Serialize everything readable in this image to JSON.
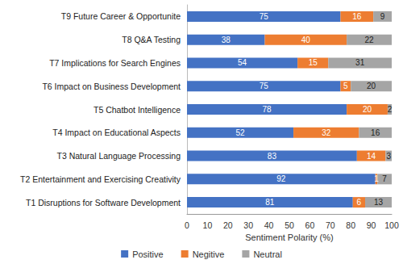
{
  "chart_data": {
    "type": "bar",
    "orientation": "horizontal",
    "stacked": true,
    "data_labels": true,
    "grid": false,
    "legend": "bottom",
    "xlabel": "Sentiment Polarity (%)",
    "xlim": [
      0,
      100
    ],
    "xticks": [
      0,
      10,
      20,
      30,
      40,
      50,
      60,
      70,
      80,
      90,
      100
    ],
    "categories": [
      "T1 Disruptions for Software Development",
      "T2 Entertainment and Exercising Creativity",
      "T3 Natural Language Processing",
      "T4 Impact on Educational Aspects",
      "T5 Chatbot Intelligence",
      "T6 Impact on Business Development",
      "T7 Implications for Search Engines",
      "T8 Q&A Testing",
      "T9 Future Career & Opportunite"
    ],
    "series": [
      {
        "name": "Positive",
        "color": "#4472c4",
        "values": [
          81,
          92,
          83,
          52,
          78,
          75,
          54,
          38,
          75
        ]
      },
      {
        "name": "Negitive",
        "color": "#ed7d31",
        "values": [
          6,
          1,
          14,
          32,
          20,
          5,
          15,
          40,
          16
        ]
      },
      {
        "name": "Neutral",
        "color": "#a5a5a5",
        "values": [
          13,
          7,
          3,
          16,
          2,
          20,
          31,
          22,
          9
        ]
      }
    ]
  }
}
